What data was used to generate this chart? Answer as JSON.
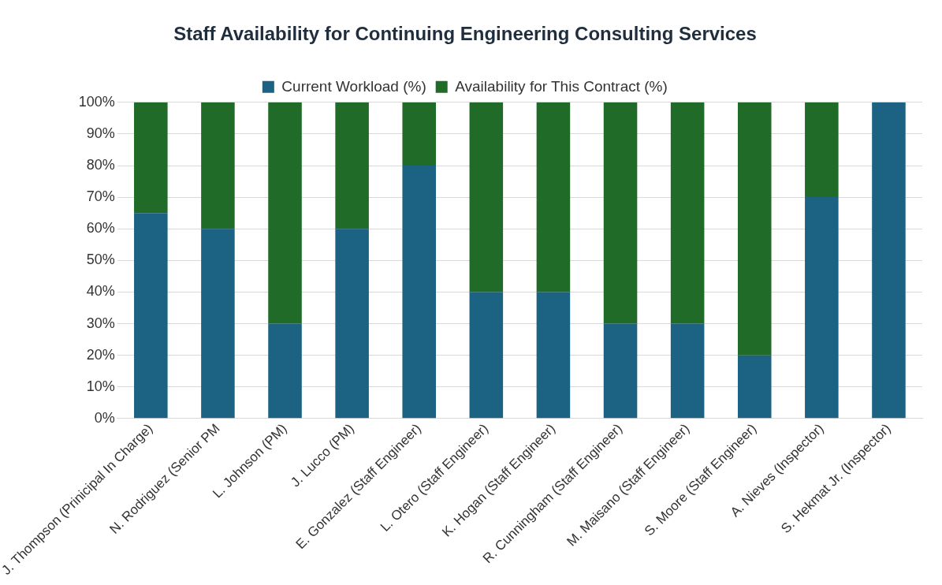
{
  "chart_data": {
    "type": "bar",
    "stacked": true,
    "title": "Staff Availability for Continuing Engineering Consulting Services",
    "categories": [
      "J. Thompson (Prinicipal In Charge)",
      "N. Rodriguez (Senior PM",
      "L. Johnson (PM)",
      "J. Lucco (PM)",
      "E. Gonzalez (Staff Engineer)",
      "L. Otero (Staff Engineer)",
      "K. Hogan (Staff Engineer)",
      "R. Cunningham (Staff Engineer)",
      "M. Maisano (Staff Engineer)",
      "S. Moore (Staff Engineer)",
      "A. Nieves (Inspector)",
      "S. Hekmat Jr. (Inspector)"
    ],
    "series": [
      {
        "name": "Current Workload (%)",
        "color": "#1b6283",
        "values": [
          65,
          60,
          30,
          60,
          80,
          40,
          40,
          30,
          30,
          20,
          70,
          100
        ]
      },
      {
        "name": "Availability for This Contract (%)",
        "color": "#1f6b27",
        "values": [
          35,
          40,
          70,
          40,
          20,
          60,
          60,
          70,
          70,
          80,
          30,
          0
        ]
      }
    ],
    "ylim": [
      0,
      100
    ],
    "yticks": [
      {
        "value": 0,
        "label": "0%"
      },
      {
        "value": 10,
        "label": "10%"
      },
      {
        "value": 20,
        "label": "20%"
      },
      {
        "value": 30,
        "label": "30%"
      },
      {
        "value": 40,
        "label": "40%"
      },
      {
        "value": 50,
        "label": "50%"
      },
      {
        "value": 60,
        "label": "60%"
      },
      {
        "value": 70,
        "label": "70%"
      },
      {
        "value": 80,
        "label": "80%"
      },
      {
        "value": 90,
        "label": "90%"
      },
      {
        "value": 100,
        "label": "100%"
      }
    ],
    "grid": "y",
    "legend": "top"
  }
}
